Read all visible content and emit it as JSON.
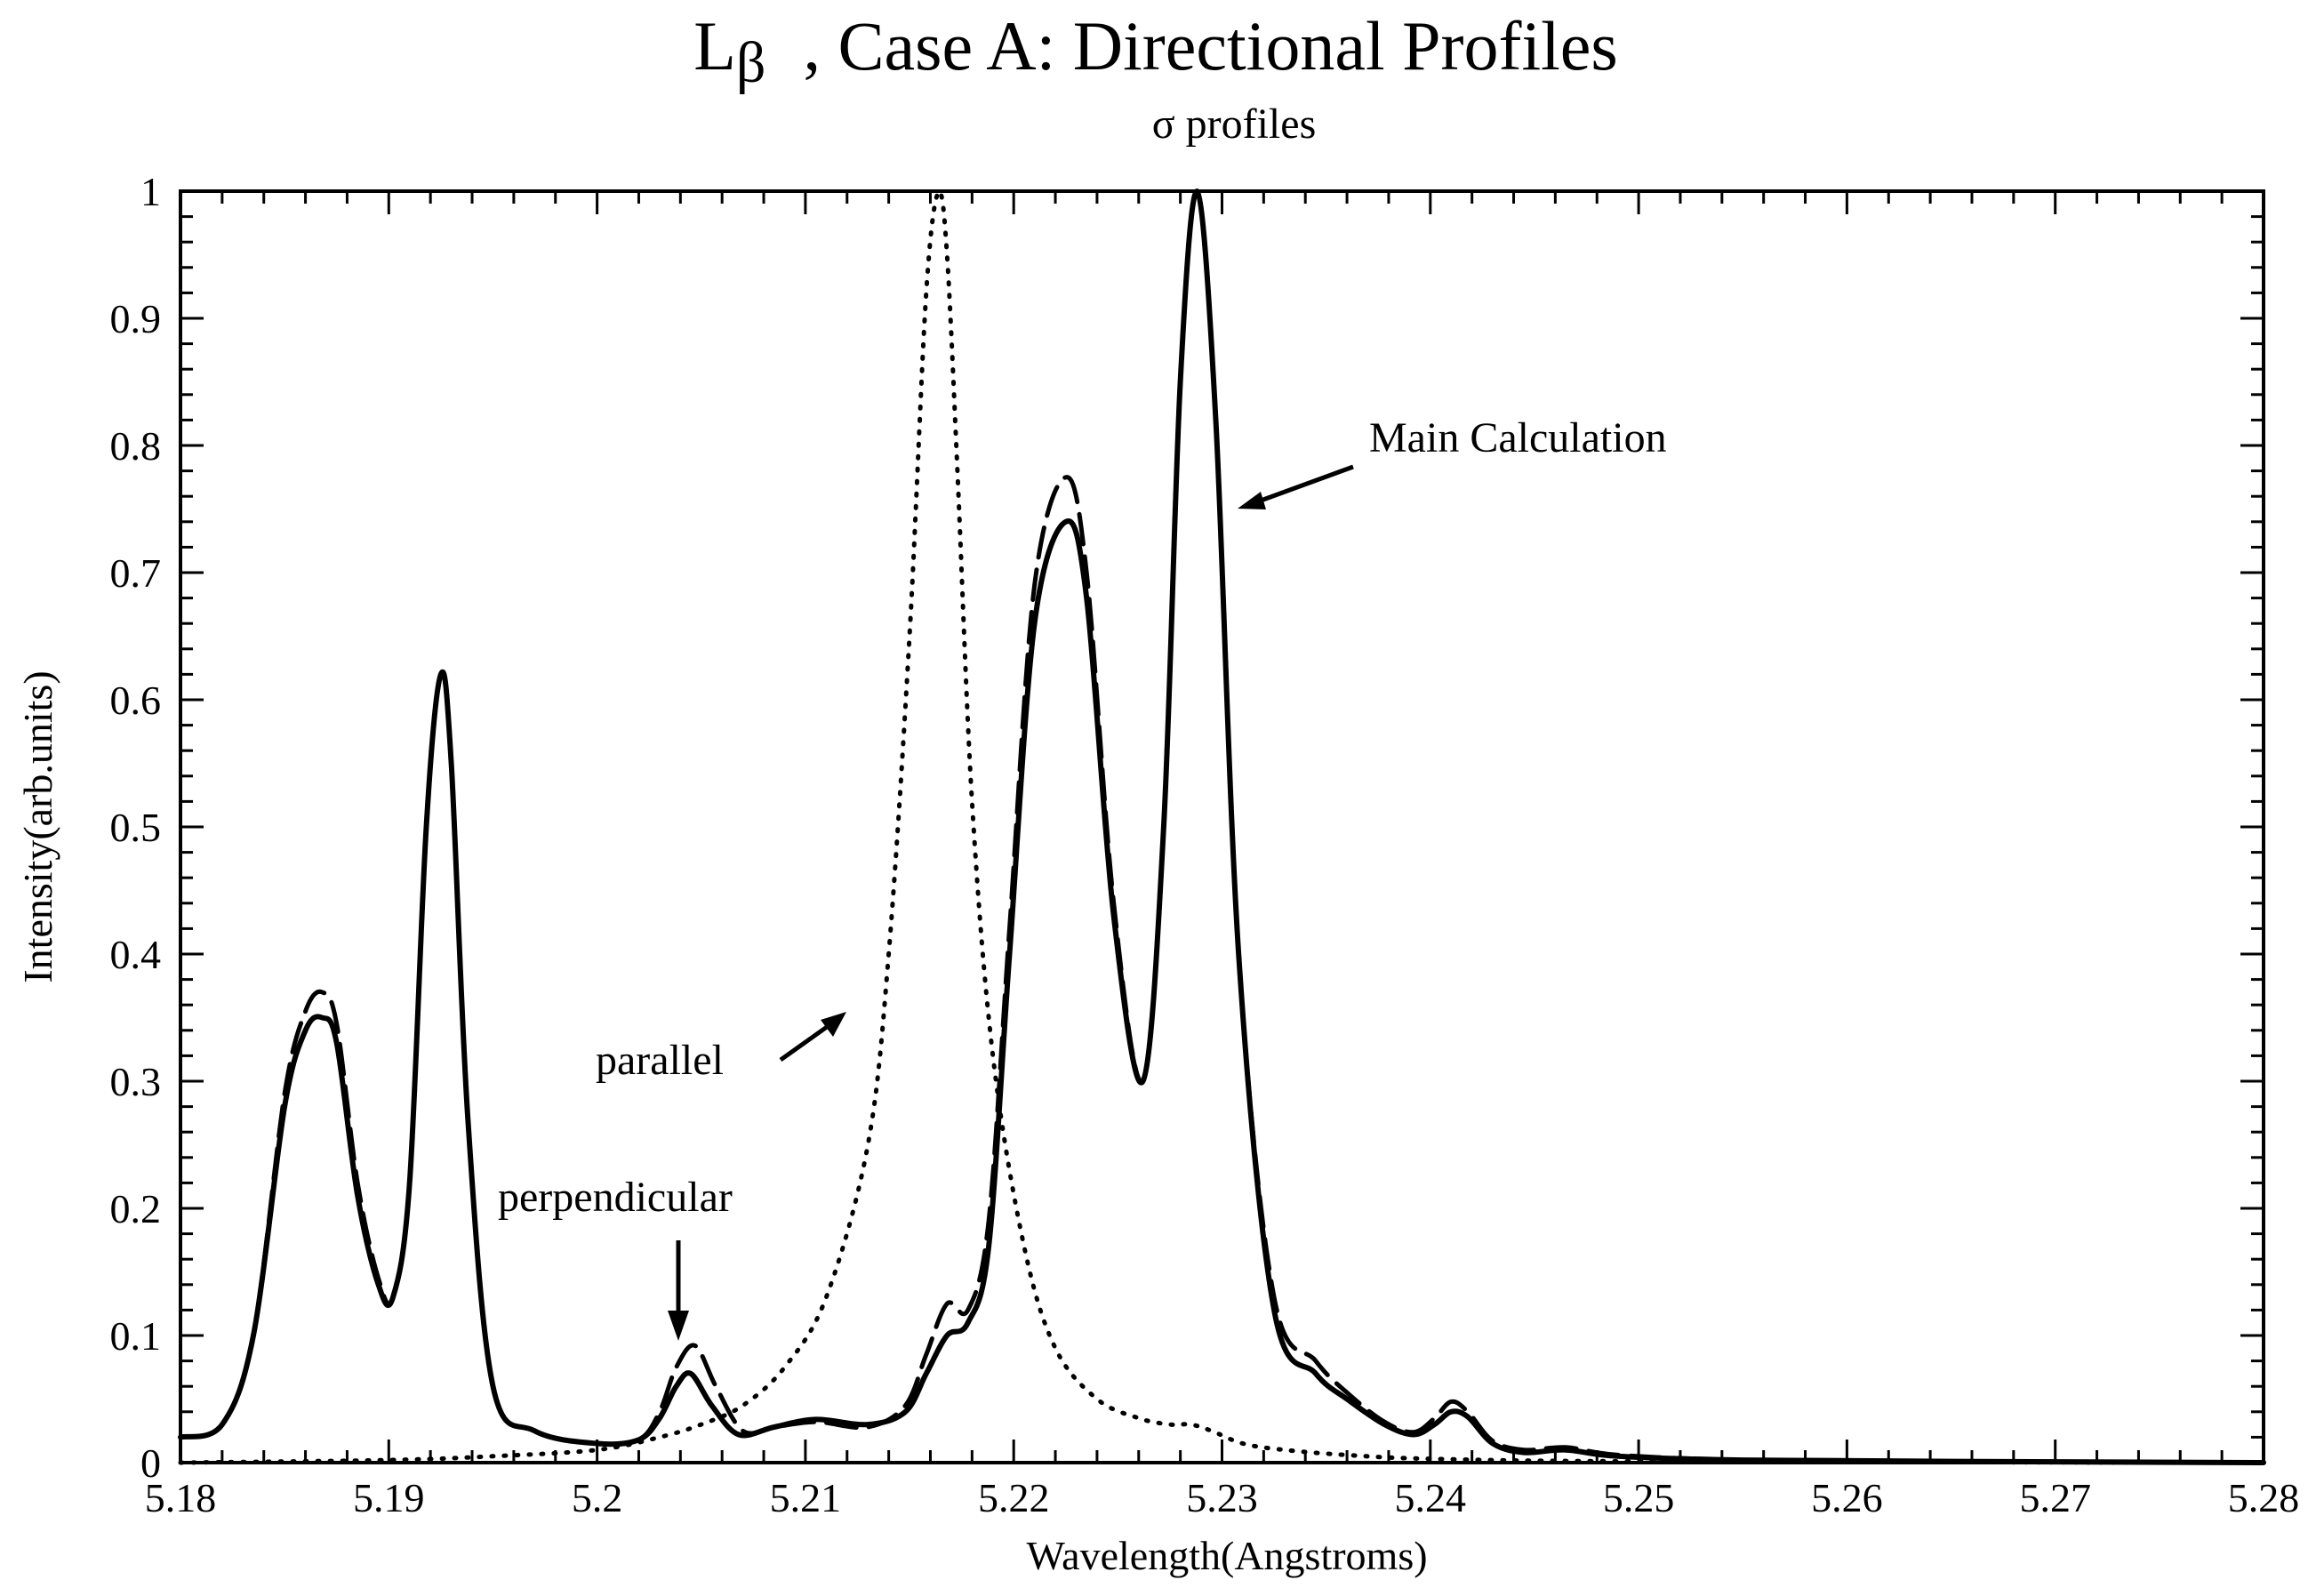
{
  "chart_data": {
    "type": "line",
    "title": "L-β , Case A: Directional Profiles",
    "title_main": "L",
    "title_greek": "β",
    "title_rest": ", Case A: Directional Profiles",
    "subtitle": "σ profiles",
    "xlabel": "Wavelength(Angstroms)",
    "ylabel": "Intensity(arb.units)",
    "xlim": [
      5.18,
      5.28
    ],
    "ylim": [
      0,
      1
    ],
    "xticks": [
      "5.18",
      "5.19",
      "5.2",
      "5.21",
      "5.22",
      "5.23",
      "5.24",
      "5.25",
      "5.26",
      "5.27",
      "5.28"
    ],
    "yticks": [
      "0",
      "0.1",
      "0.2",
      "0.3",
      "0.4",
      "0.5",
      "0.6",
      "0.7",
      "0.8",
      "0.9",
      "1"
    ],
    "grid": false,
    "series": [
      {
        "name": "Main Calculation",
        "style": "solid",
        "x": [
          5.18,
          5.182,
          5.1835,
          5.185,
          5.186,
          5.1868,
          5.1875,
          5.1885,
          5.1895,
          5.1902,
          5.191,
          5.1918,
          5.1925,
          5.193,
          5.1938,
          5.195,
          5.197,
          5.2,
          5.202,
          5.203,
          5.2038,
          5.2045,
          5.2055,
          5.2068,
          5.2085,
          5.2105,
          5.213,
          5.2148,
          5.2158,
          5.2168,
          5.2178,
          5.2188,
          5.2198,
          5.221,
          5.2225,
          5.2235,
          5.2248,
          5.2262,
          5.2272,
          5.228,
          5.2288,
          5.2297,
          5.2308,
          5.2325,
          5.2345,
          5.236,
          5.2378,
          5.2392,
          5.2402,
          5.241,
          5.2418,
          5.243,
          5.2445,
          5.2465,
          5.249,
          5.255,
          5.265,
          5.28
        ],
        "y": [
          0.02,
          0.03,
          0.1,
          0.28,
          0.34,
          0.35,
          0.33,
          0.21,
          0.14,
          0.13,
          0.22,
          0.5,
          0.62,
          0.55,
          0.27,
          0.06,
          0.025,
          0.015,
          0.018,
          0.035,
          0.06,
          0.07,
          0.045,
          0.022,
          0.028,
          0.034,
          0.03,
          0.04,
          0.07,
          0.1,
          0.11,
          0.17,
          0.4,
          0.66,
          0.74,
          0.68,
          0.43,
          0.3,
          0.5,
          0.85,
          1.0,
          0.82,
          0.4,
          0.12,
          0.07,
          0.05,
          0.03,
          0.022,
          0.03,
          0.04,
          0.036,
          0.015,
          0.008,
          0.01,
          0.005,
          0.002,
          0.001,
          0.0
        ]
      },
      {
        "name": "perpendicular",
        "style": "dashed",
        "x": [
          5.18,
          5.182,
          5.1835,
          5.185,
          5.186,
          5.1868,
          5.1875,
          5.1885,
          5.1895,
          5.1902,
          5.191,
          5.1918,
          5.1925,
          5.193,
          5.1938,
          5.195,
          5.197,
          5.2,
          5.202,
          5.203,
          5.2038,
          5.2047,
          5.2057,
          5.207,
          5.2085,
          5.2105,
          5.213,
          5.2148,
          5.2158,
          5.2168,
          5.2178,
          5.2188,
          5.2198,
          5.221,
          5.2225,
          5.2235,
          5.2248,
          5.2262,
          5.2272,
          5.228,
          5.2288,
          5.2297,
          5.2308,
          5.2325,
          5.2345,
          5.236,
          5.2378,
          5.2392,
          5.2402,
          5.241,
          5.2418,
          5.243,
          5.2445,
          5.2465,
          5.249,
          5.255,
          5.265,
          5.28
        ],
        "y": [
          0.02,
          0.03,
          0.1,
          0.29,
          0.355,
          0.37,
          0.345,
          0.22,
          0.145,
          0.13,
          0.22,
          0.5,
          0.62,
          0.55,
          0.27,
          0.06,
          0.025,
          0.015,
          0.018,
          0.04,
          0.075,
          0.092,
          0.06,
          0.025,
          0.028,
          0.032,
          0.028,
          0.045,
          0.085,
          0.125,
          0.12,
          0.19,
          0.42,
          0.69,
          0.775,
          0.7,
          0.44,
          0.3,
          0.5,
          0.85,
          1.0,
          0.82,
          0.4,
          0.13,
          0.08,
          0.055,
          0.032,
          0.024,
          0.035,
          0.048,
          0.04,
          0.017,
          0.01,
          0.012,
          0.006,
          0.002,
          0.001,
          0.0
        ]
      },
      {
        "name": "parallel",
        "style": "dotted",
        "x": [
          5.18,
          5.19,
          5.195,
          5.2,
          5.203,
          5.205,
          5.207,
          5.209,
          5.211,
          5.213,
          5.214,
          5.215,
          5.2158,
          5.2164,
          5.2168,
          5.2173,
          5.218,
          5.219,
          5.2205,
          5.222,
          5.224,
          5.226,
          5.2275,
          5.2285,
          5.2295,
          5.231,
          5.233,
          5.236,
          5.24,
          5.25,
          5.28
        ],
        "y": [
          0.0,
          0.002,
          0.005,
          0.01,
          0.02,
          0.03,
          0.045,
          0.075,
          0.13,
          0.25,
          0.4,
          0.65,
          0.92,
          1.0,
          0.95,
          0.78,
          0.52,
          0.32,
          0.17,
          0.09,
          0.05,
          0.035,
          0.03,
          0.03,
          0.025,
          0.015,
          0.01,
          0.006,
          0.003,
          0.001,
          0.0
        ]
      }
    ],
    "annotations": [
      {
        "text": "Main Calculation",
        "points_to": [
          5.2289,
          0.75
        ]
      },
      {
        "text": "parallel",
        "points_to": [
          5.2135,
          0.355
        ]
      },
      {
        "text": "perpendicular",
        "points_to": [
          5.2038,
          0.09
        ]
      }
    ]
  }
}
